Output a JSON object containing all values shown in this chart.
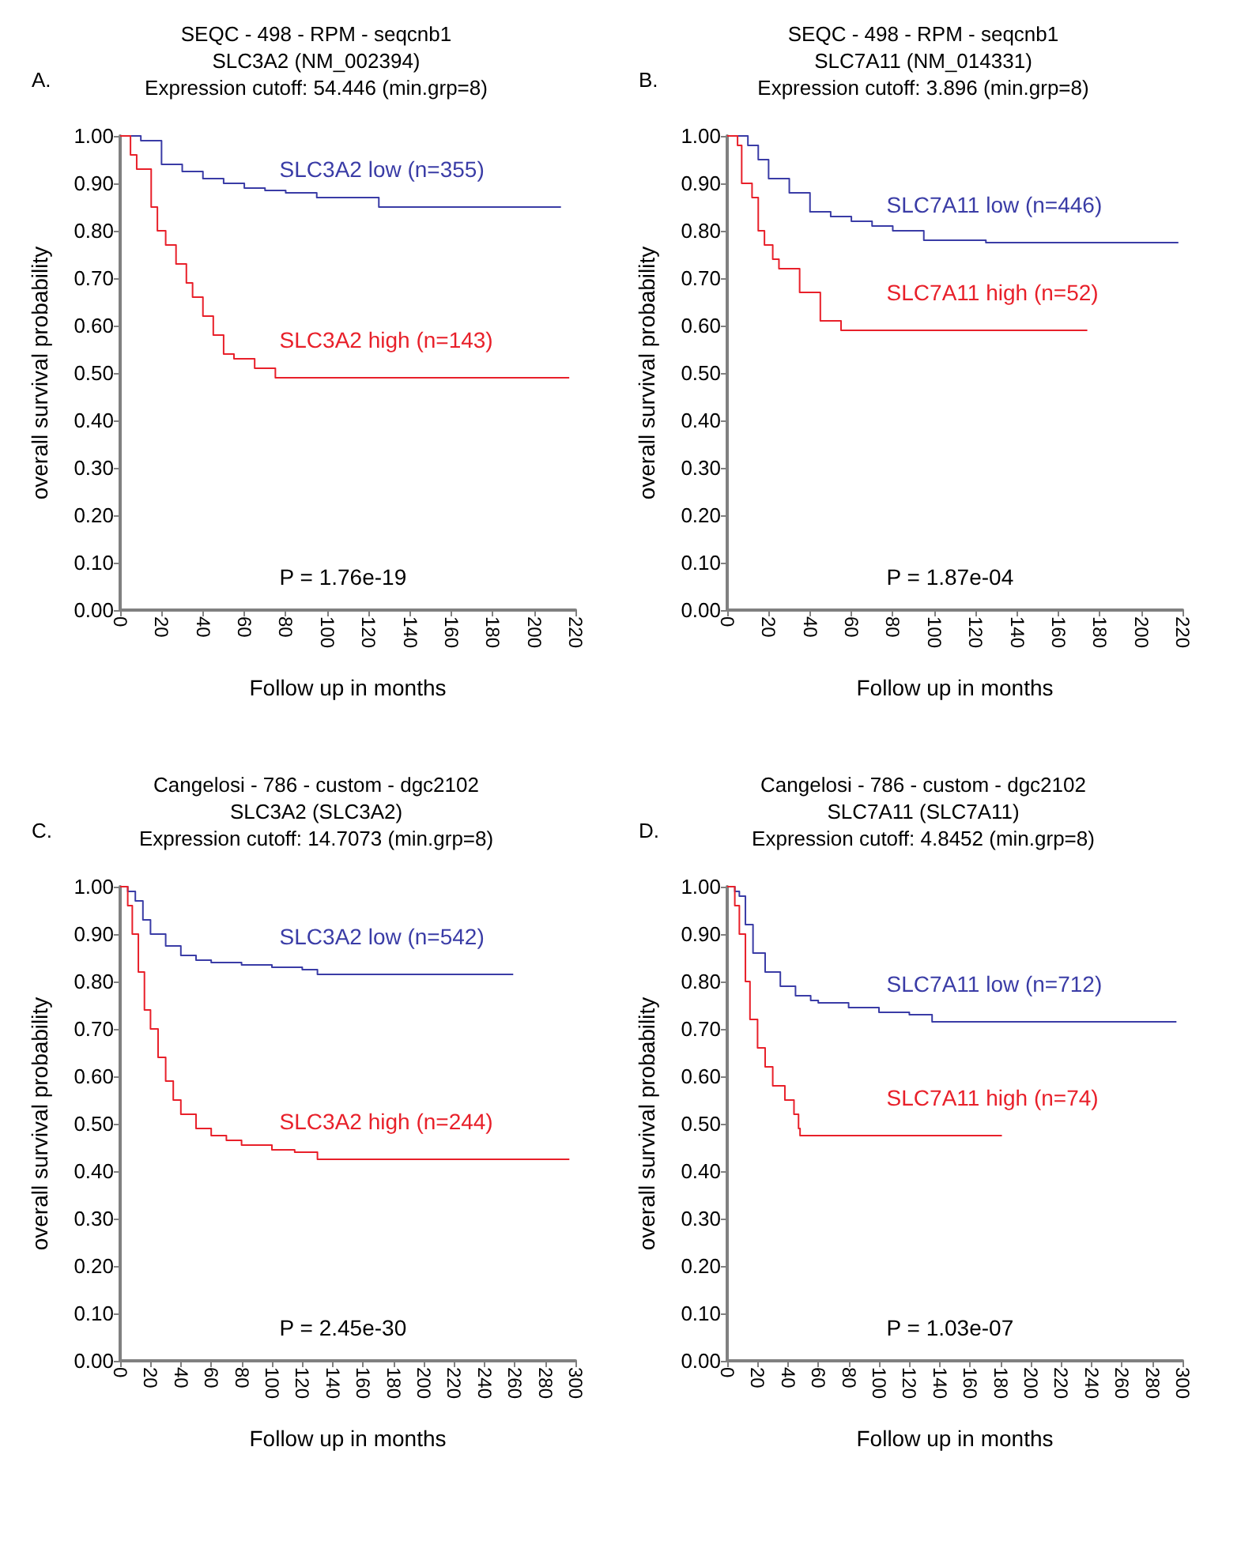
{
  "chart_data": [
    {
      "type": "step",
      "title": "SEQC - 498 - RPM - seqcnb1",
      "subtitle": "SLC3A2 (NM_002394)\nExpression cutoff: 54.446 (min.grp=8)",
      "xlabel": "Follow up in months",
      "ylabel": "overall survival probability",
      "annotations": [
        "A.",
        "P = 1.76e-19"
      ],
      "xlim": [
        0,
        220
      ],
      "xticks": [
        0,
        20,
        40,
        60,
        80,
        100,
        120,
        140,
        160,
        180,
        200,
        220
      ],
      "ylim": [
        0,
        1
      ],
      "yticks": [
        {
          "value": 0,
          "label": "0.00"
        },
        {
          "value": 0.1,
          "label": "0.10"
        },
        {
          "value": 0.2,
          "label": "0.20"
        },
        {
          "value": 0.3,
          "label": "0.30"
        },
        {
          "value": 0.4,
          "label": "0.40"
        },
        {
          "value": 0.5,
          "label": "0.50"
        },
        {
          "value": 0.6,
          "label": "0.60"
        },
        {
          "value": 0.7,
          "label": "0.70"
        },
        {
          "value": 0.8,
          "label": "0.80"
        },
        {
          "value": 0.9,
          "label": "0.90"
        },
        {
          "value": 1,
          "label": "1.00"
        }
      ],
      "series": [
        {
          "name": "SLC3A2 low (n=355)",
          "color": "#3a3ca6",
          "x": [
            0,
            10,
            20,
            30,
            40,
            50,
            60,
            70,
            80,
            95,
            125,
            213
          ],
          "values": [
            1.0,
            0.99,
            0.94,
            0.925,
            0.91,
            0.9,
            0.89,
            0.885,
            0.88,
            0.87,
            0.85,
            0.85
          ]
        },
        {
          "name": "SLC3A2 high (n=143)",
          "color": "#e8202a",
          "x": [
            0,
            5,
            8,
            15,
            18,
            22,
            27,
            32,
            35,
            40,
            45,
            50,
            55,
            65,
            75,
            217
          ],
          "values": [
            1.0,
            0.96,
            0.93,
            0.85,
            0.8,
            0.77,
            0.73,
            0.69,
            0.66,
            0.62,
            0.58,
            0.54,
            0.53,
            0.51,
            0.49,
            0.49
          ]
        }
      ]
    },
    {
      "type": "step",
      "title": "SEQC - 498 - RPM - seqcnb1",
      "subtitle": "SLC7A11 (NM_014331)\nExpression cutoff: 3.896 (min.grp=8)",
      "xlabel": "Follow up in months",
      "ylabel": "overall survival probability",
      "annotations": [
        "B.",
        "P = 1.87e-04"
      ],
      "xlim": [
        0,
        220
      ],
      "xticks": [
        0,
        20,
        40,
        60,
        80,
        100,
        120,
        140,
        160,
        180,
        200,
        220
      ],
      "ylim": [
        0,
        1
      ],
      "yticks": [
        {
          "value": 0,
          "label": "0.00"
        },
        {
          "value": 0.1,
          "label": "0.10"
        },
        {
          "value": 0.2,
          "label": "0.20"
        },
        {
          "value": 0.3,
          "label": "0.30"
        },
        {
          "value": 0.4,
          "label": "0.40"
        },
        {
          "value": 0.5,
          "label": "0.50"
        },
        {
          "value": 0.6,
          "label": "0.60"
        },
        {
          "value": 0.7,
          "label": "0.70"
        },
        {
          "value": 0.8,
          "label": "0.80"
        },
        {
          "value": 0.9,
          "label": "0.90"
        },
        {
          "value": 1,
          "label": "1.00"
        }
      ],
      "series": [
        {
          "name": "SLC7A11 low (n=446)",
          "color": "#3a3ca6",
          "x": [
            0,
            10,
            15,
            20,
            30,
            40,
            50,
            60,
            70,
            80,
            95,
            125,
            218
          ],
          "values": [
            1.0,
            0.98,
            0.95,
            0.91,
            0.88,
            0.84,
            0.83,
            0.82,
            0.81,
            0.8,
            0.78,
            0.775,
            0.775
          ]
        },
        {
          "name": "SLC7A11 high (n=52)",
          "color": "#e8202a",
          "x": [
            0,
            5,
            7,
            12,
            15,
            18,
            22,
            25,
            35,
            45,
            55,
            174
          ],
          "values": [
            1.0,
            0.98,
            0.9,
            0.87,
            0.8,
            0.77,
            0.74,
            0.72,
            0.67,
            0.61,
            0.59,
            0.59
          ]
        }
      ]
    },
    {
      "type": "step",
      "title": "Cangelosi - 786 - custom - dgc2102",
      "subtitle": "SLC3A2 (SLC3A2)\nExpression cutoff: 14.7073 (min.grp=8)",
      "xlabel": "Follow up in months",
      "ylabel": "overall survival probability",
      "annotations": [
        "C.",
        "P = 2.45e-30"
      ],
      "xlim": [
        0,
        300
      ],
      "xticks": [
        0,
        20,
        40,
        60,
        80,
        100,
        120,
        140,
        160,
        180,
        200,
        220,
        240,
        260,
        280,
        300
      ],
      "ylim": [
        0,
        1
      ],
      "yticks": [
        {
          "value": 0,
          "label": "0.00"
        },
        {
          "value": 0.1,
          "label": "0.10"
        },
        {
          "value": 0.2,
          "label": "0.20"
        },
        {
          "value": 0.3,
          "label": "0.30"
        },
        {
          "value": 0.4,
          "label": "0.40"
        },
        {
          "value": 0.5,
          "label": "0.50"
        },
        {
          "value": 0.6,
          "label": "0.60"
        },
        {
          "value": 0.7,
          "label": "0.70"
        },
        {
          "value": 0.8,
          "label": "0.80"
        },
        {
          "value": 0.9,
          "label": "0.90"
        },
        {
          "value": 1,
          "label": "1.00"
        }
      ],
      "series": [
        {
          "name": "SLC3A2 low (n=542)",
          "color": "#3a3ca6",
          "x": [
            0,
            5,
            10,
            15,
            20,
            30,
            40,
            50,
            60,
            80,
            100,
            120,
            130,
            259
          ],
          "values": [
            1.0,
            0.99,
            0.97,
            0.93,
            0.9,
            0.875,
            0.855,
            0.845,
            0.84,
            0.835,
            0.83,
            0.825,
            0.815,
            0.815
          ]
        },
        {
          "name": "SLC3A2 high (n=244)",
          "color": "#e8202a",
          "x": [
            0,
            5,
            8,
            12,
            16,
            20,
            25,
            30,
            35,
            40,
            50,
            60,
            70,
            80,
            100,
            115,
            130,
            296
          ],
          "values": [
            1.0,
            0.96,
            0.9,
            0.82,
            0.74,
            0.7,
            0.64,
            0.59,
            0.55,
            0.52,
            0.49,
            0.475,
            0.465,
            0.455,
            0.445,
            0.44,
            0.425,
            0.425
          ]
        }
      ]
    },
    {
      "type": "step",
      "title": "Cangelosi - 786 - custom - dgc2102",
      "subtitle": "SLC7A11 (SLC7A11)\nExpression cutoff: 4.8452 (min.grp=8)",
      "xlabel": "Follow up in months",
      "ylabel": "overall survival probability",
      "annotations": [
        "D.",
        "P = 1.03e-07"
      ],
      "xlim": [
        0,
        300
      ],
      "xticks": [
        0,
        20,
        40,
        60,
        80,
        100,
        120,
        140,
        160,
        180,
        200,
        220,
        240,
        260,
        280,
        300
      ],
      "ylim": [
        0,
        1
      ],
      "yticks": [
        {
          "value": 0,
          "label": "0.00"
        },
        {
          "value": 0.1,
          "label": "0.10"
        },
        {
          "value": 0.2,
          "label": "0.20"
        },
        {
          "value": 0.3,
          "label": "0.30"
        },
        {
          "value": 0.4,
          "label": "0.40"
        },
        {
          "value": 0.5,
          "label": "0.50"
        },
        {
          "value": 0.6,
          "label": "0.60"
        },
        {
          "value": 0.7,
          "label": "0.70"
        },
        {
          "value": 0.8,
          "label": "0.80"
        },
        {
          "value": 0.9,
          "label": "0.90"
        },
        {
          "value": 1,
          "label": "1.00"
        }
      ],
      "series": [
        {
          "name": "SLC7A11 low (n=712)",
          "color": "#3a3ca6",
          "x": [
            0,
            5,
            8,
            12,
            17,
            25,
            35,
            45,
            55,
            60,
            80,
            100,
            120,
            135,
            296
          ],
          "values": [
            1.0,
            0.99,
            0.98,
            0.92,
            0.86,
            0.82,
            0.79,
            0.77,
            0.76,
            0.755,
            0.745,
            0.735,
            0.73,
            0.715,
            0.715
          ]
        },
        {
          "name": "SLC7A11 high (n=74)",
          "color": "#e8202a",
          "x": [
            0,
            5,
            8,
            12,
            15,
            20,
            25,
            30,
            38,
            44,
            47,
            48,
            181
          ],
          "values": [
            1.0,
            0.96,
            0.9,
            0.8,
            0.72,
            0.66,
            0.62,
            0.58,
            0.55,
            0.52,
            0.49,
            0.475,
            0.475
          ]
        }
      ]
    }
  ]
}
